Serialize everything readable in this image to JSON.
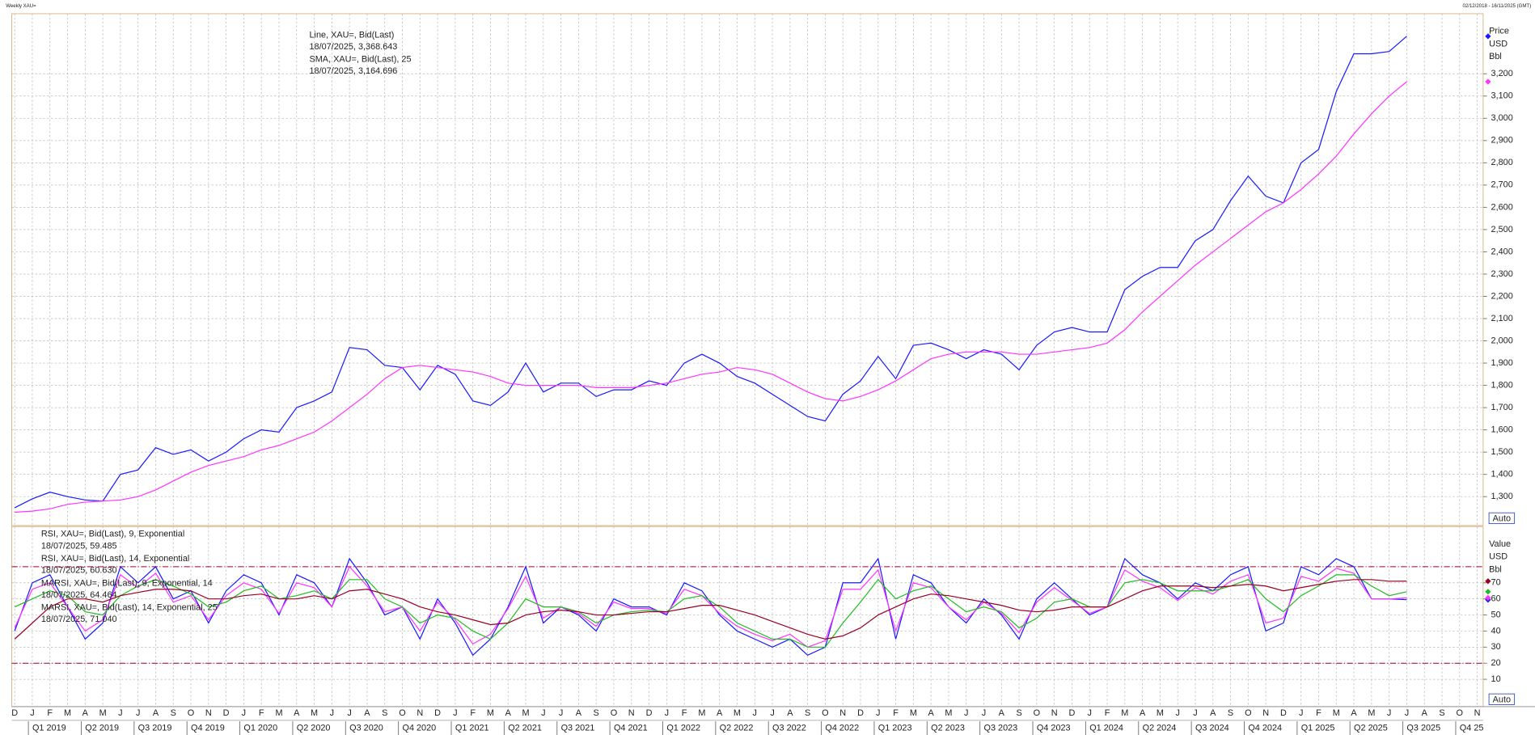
{
  "chart_data": [
    {
      "type": "line",
      "title": "Weekly XAU=",
      "date_range": "02/12/2018 - 16/11/2025 (GMT)",
      "axis_units": [
        "Price",
        "USD",
        "Bbl"
      ],
      "scale_button": "Auto",
      "grid": true,
      "ylim": [
        1170,
        3470
      ],
      "yticks": [
        {
          "value": 1300,
          "label": "1,300"
        },
        {
          "value": 1400,
          "label": "1,400"
        },
        {
          "value": 1500,
          "label": "1,500"
        },
        {
          "value": 1600,
          "label": "1,600"
        },
        {
          "value": 1700,
          "label": "1,700"
        },
        {
          "value": 1800,
          "label": "1,800"
        },
        {
          "value": 1900,
          "label": "1,900"
        },
        {
          "value": 2000,
          "label": "2,000"
        },
        {
          "value": 2100,
          "label": "2,100"
        },
        {
          "value": 2200,
          "label": "2,200"
        },
        {
          "value": 2300,
          "label": "2,300"
        },
        {
          "value": 2400,
          "label": "2,400"
        },
        {
          "value": 2500,
          "label": "2,500"
        },
        {
          "value": 2600,
          "label": "2,600"
        },
        {
          "value": 2700,
          "label": "2,700"
        },
        {
          "value": 2800,
          "label": "2,800"
        },
        {
          "value": 2900,
          "label": "2,900"
        },
        {
          "value": 3000,
          "label": "3,000"
        },
        {
          "value": 3100,
          "label": "3,100"
        },
        {
          "value": 3200,
          "label": "3,200"
        }
      ],
      "series": [
        {
          "name": "Line, XAU=, Bid(Last)",
          "last_label": "18/07/2025, 3,368.643",
          "color": "#1a1aff",
          "values": [
            1250,
            1290,
            1320,
            1300,
            1285,
            1280,
            1400,
            1420,
            1520,
            1490,
            1510,
            1460,
            1500,
            1560,
            1600,
            1590,
            1700,
            1730,
            1770,
            1970,
            1960,
            1890,
            1880,
            1780,
            1890,
            1850,
            1730,
            1710,
            1770,
            1900,
            1770,
            1810,
            1810,
            1750,
            1780,
            1780,
            1820,
            1800,
            1900,
            1940,
            1900,
            1840,
            1810,
            1760,
            1710,
            1660,
            1640,
            1760,
            1820,
            1930,
            1830,
            1980,
            1990,
            1960,
            1920,
            1960,
            1940,
            1870,
            1980,
            2040,
            2060,
            2040,
            2040,
            2230,
            2290,
            2330,
            2330,
            2450,
            2500,
            2630,
            2740,
            2650,
            2620,
            2800,
            2860,
            3120,
            3290,
            3290,
            3300,
            3368.643,
            null,
            null,
            null,
            null
          ]
        },
        {
          "name": "SMA, XAU=, Bid(Last),  25",
          "last_label": "18/07/2025, 3,164.696",
          "color": "#ff33ff",
          "values": [
            1230,
            1235,
            1245,
            1265,
            1275,
            1280,
            1285,
            1300,
            1330,
            1370,
            1410,
            1440,
            1460,
            1480,
            1510,
            1530,
            1560,
            1590,
            1640,
            1700,
            1760,
            1830,
            1880,
            1890,
            1880,
            1870,
            1860,
            1840,
            1810,
            1800,
            1800,
            1800,
            1800,
            1790,
            1790,
            1790,
            1800,
            1810,
            1830,
            1850,
            1860,
            1880,
            1870,
            1850,
            1810,
            1770,
            1740,
            1730,
            1750,
            1780,
            1820,
            1870,
            1920,
            1940,
            1950,
            1950,
            1950,
            1940,
            1940,
            1950,
            1960,
            1970,
            1990,
            2050,
            2130,
            2200,
            2270,
            2340,
            2400,
            2460,
            2520,
            2580,
            2620,
            2680,
            2750,
            2830,
            2930,
            3020,
            3100,
            3164.696,
            null,
            null,
            null,
            null
          ]
        }
      ]
    },
    {
      "type": "line",
      "axis_units": [
        "Value",
        "USD",
        "Bbl"
      ],
      "scale_button": "Auto",
      "grid": true,
      "ylim": [
        -7,
        105
      ],
      "yticks": [
        10,
        20,
        30,
        40,
        50,
        60,
        70
      ],
      "hlines": [
        80,
        20
      ],
      "hline_color": "#a0002a",
      "categories": [
        "D",
        "J",
        "F",
        "M",
        "A",
        "M",
        "J",
        "J",
        "A",
        "S",
        "O",
        "N",
        "D",
        "J",
        "F",
        "M",
        "A",
        "M",
        "J",
        "J",
        "A",
        "S",
        "O",
        "N",
        "D",
        "J",
        "F",
        "M",
        "A",
        "M",
        "J",
        "J",
        "A",
        "S",
        "O",
        "N",
        "D",
        "J",
        "F",
        "M",
        "A",
        "M",
        "J",
        "J",
        "A",
        "S",
        "O",
        "N",
        "D",
        "J",
        "F",
        "M",
        "A",
        "M",
        "J",
        "J",
        "A",
        "S",
        "O",
        "N",
        "D",
        "J",
        "F",
        "M",
        "A",
        "M",
        "J",
        "J",
        "A",
        "S",
        "O",
        "N",
        "D",
        "J",
        "F",
        "M",
        "A",
        "M",
        "J",
        "J",
        "A",
        "S",
        "O",
        "N"
      ],
      "quarters": [
        "Q1 2019",
        "Q2 2019",
        "Q3 2019",
        "Q4 2019",
        "Q1 2020",
        "Q2 2020",
        "Q3 2020",
        "Q4 2020",
        "Q1 2021",
        "Q2 2021",
        "Q3 2021",
        "Q4 2021",
        "Q1 2022",
        "Q2 2022",
        "Q3 2022",
        "Q4 2022",
        "Q1 2023",
        "Q2 2023",
        "Q3 2023",
        "Q4 2023",
        "Q1 2024",
        "Q2 2024",
        "Q3 2024",
        "Q4 2024",
        "Q1 2025",
        "Q2 2025",
        "Q3 2025",
        "Q4 25"
      ],
      "series": [
        {
          "name": "RSI, XAU=, Bid(Last),  9, Exponential",
          "last_label": "18/07/2025, 59.485",
          "color": "#1a1aff",
          "values": [
            40,
            70,
            75,
            55,
            35,
            45,
            80,
            70,
            80,
            60,
            65,
            45,
            65,
            75,
            70,
            50,
            75,
            70,
            55,
            85,
            70,
            50,
            55,
            35,
            60,
            45,
            25,
            35,
            55,
            80,
            45,
            55,
            50,
            40,
            60,
            55,
            55,
            50,
            70,
            65,
            50,
            40,
            35,
            30,
            35,
            25,
            30,
            70,
            70,
            85,
            35,
            75,
            70,
            55,
            45,
            60,
            50,
            35,
            60,
            70,
            60,
            50,
            55,
            85,
            75,
            70,
            60,
            70,
            65,
            75,
            80,
            40,
            45,
            80,
            75,
            85,
            80,
            60,
            60,
            59.485,
            null,
            null,
            null,
            null
          ]
        },
        {
          "name": "RSI, XAU=, Bid(Last),  14, Exponential",
          "last_label": "18/07/2025, 60.630",
          "color": "#ff33ff",
          "values": [
            42,
            66,
            70,
            55,
            40,
            47,
            75,
            67,
            76,
            58,
            62,
            47,
            62,
            70,
            66,
            51,
            70,
            67,
            55,
            80,
            68,
            52,
            55,
            40,
            58,
            47,
            32,
            38,
            54,
            74,
            48,
            55,
            51,
            43,
            58,
            54,
            54,
            51,
            66,
            62,
            51,
            43,
            38,
            34,
            38,
            30,
            34,
            66,
            66,
            78,
            40,
            70,
            67,
            55,
            47,
            58,
            51,
            39,
            58,
            67,
            59,
            51,
            55,
            78,
            71,
            67,
            59,
            67,
            63,
            71,
            75,
            45,
            48,
            74,
            71,
            79,
            76,
            60,
            60,
            60.63,
            null,
            null,
            null,
            null
          ]
        },
        {
          "name": "MARSI, XAU=, Bid(Last),  9, Exponential, 14",
          "last_label": "18/07/2025, 64.464",
          "color": "#22bb22",
          "values": [
            55,
            60,
            65,
            62,
            52,
            50,
            62,
            68,
            72,
            68,
            63,
            55,
            58,
            65,
            68,
            60,
            62,
            65,
            60,
            72,
            72,
            60,
            55,
            45,
            50,
            48,
            40,
            35,
            45,
            60,
            55,
            55,
            52,
            45,
            50,
            52,
            53,
            52,
            60,
            62,
            55,
            45,
            40,
            35,
            35,
            30,
            30,
            45,
            58,
            72,
            60,
            65,
            68,
            60,
            52,
            55,
            52,
            42,
            48,
            58,
            60,
            55,
            55,
            70,
            72,
            70,
            65,
            65,
            65,
            68,
            72,
            60,
            52,
            62,
            68,
            75,
            75,
            68,
            62,
            64.464,
            null,
            null,
            null,
            null
          ]
        },
        {
          "name": "MARSI, XAU=, Bid(Last),  14, Exponential, 25",
          "last_label": "18/07/2025, 71.040",
          "color": "#990022",
          "values": [
            35,
            45,
            55,
            60,
            60,
            58,
            62,
            64,
            66,
            66,
            65,
            60,
            60,
            62,
            63,
            60,
            60,
            62,
            60,
            65,
            66,
            63,
            60,
            55,
            52,
            50,
            47,
            44,
            45,
            50,
            52,
            53,
            52,
            50,
            50,
            51,
            52,
            52,
            54,
            56,
            56,
            53,
            50,
            46,
            42,
            38,
            35,
            37,
            42,
            50,
            55,
            60,
            63,
            62,
            60,
            58,
            56,
            53,
            52,
            53,
            55,
            55,
            55,
            60,
            65,
            68,
            68,
            68,
            67,
            68,
            69,
            68,
            65,
            67,
            69,
            71,
            72,
            72,
            71,
            71.04,
            null,
            null,
            null,
            null
          ]
        }
      ]
    }
  ]
}
